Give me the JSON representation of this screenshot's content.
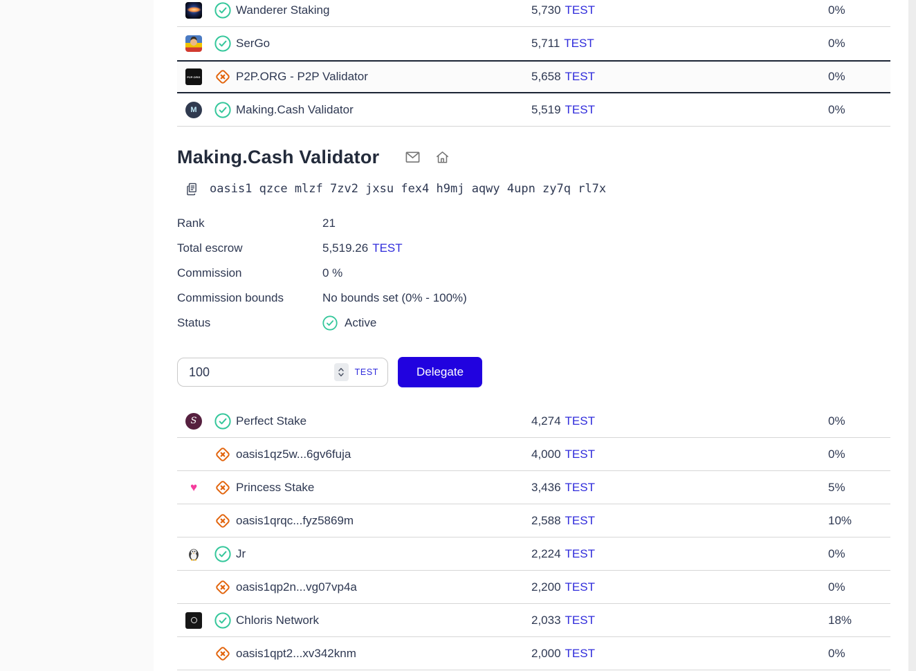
{
  "colors": {
    "accent_blue": "#2102df",
    "link_blue": "#2f2bdb",
    "active_green": "#35c79b",
    "inactive_orange": "#e2650e",
    "text_navy": "#2e3852",
    "selected_row_border": "#1b2434"
  },
  "top_table": {
    "rows": [
      {
        "name": "Wanderer Staking",
        "status": "active",
        "escrow": "5,730",
        "token": "TEST",
        "fee": "0%",
        "avatar": "black-hole",
        "selected": false
      },
      {
        "name": "SerGo",
        "status": "active",
        "escrow": "5,711",
        "token": "TEST",
        "fee": "0%",
        "avatar": "portrait",
        "selected": false
      },
      {
        "name": "P2P.ORG - P2P Validator",
        "status": "inactive",
        "escrow": "5,658",
        "token": "TEST",
        "fee": "0%",
        "avatar": "p2p-logo",
        "selected": true
      },
      {
        "name": "Making.Cash Validator",
        "status": "active",
        "escrow": "5,519",
        "token": "TEST",
        "fee": "0%",
        "avatar": "cube-logo",
        "selected": false
      }
    ]
  },
  "validator_detail": {
    "title": "Making.Cash Validator",
    "address": "oasis1 qzce mlzf 7zv2 jxsu fex4 h9mj aqwy 4upn zy7q rl7x",
    "fields": [
      {
        "label": "Rank",
        "value": "21",
        "type": "plain"
      },
      {
        "label": "Total escrow",
        "value": "5,519.26",
        "token": "TEST",
        "type": "token"
      },
      {
        "label": "Commission",
        "value": "0 %",
        "type": "plain"
      },
      {
        "label": "Commission bounds",
        "value": "No bounds set (0% - 100%)",
        "type": "plain"
      },
      {
        "label": "Status",
        "value": "Active",
        "type": "status"
      }
    ]
  },
  "delegate_form": {
    "amount": "100",
    "currency": "TEST",
    "button_label": "Delegate"
  },
  "bottom_table": {
    "rows": [
      {
        "name": "Perfect Stake",
        "status": "active",
        "escrow": "4,274",
        "token": "TEST",
        "fee": "0%",
        "avatar": "perfect-stake-logo",
        "selected": false
      },
      {
        "name": "oasis1qz5w...6gv6fuja",
        "status": "inactive",
        "escrow": "4,000",
        "token": "TEST",
        "fee": "0%",
        "avatar": null,
        "selected": false
      },
      {
        "name": "Princess Stake",
        "status": "inactive",
        "escrow": "3,436",
        "token": "TEST",
        "fee": "5%",
        "avatar": "heart",
        "selected": false
      },
      {
        "name": "oasis1qrqc...fyz5869m",
        "status": "inactive",
        "escrow": "2,588",
        "token": "TEST",
        "fee": "10%",
        "avatar": null,
        "selected": false
      },
      {
        "name": "Jr",
        "status": "active",
        "escrow": "2,224",
        "token": "TEST",
        "fee": "0%",
        "avatar": "penguin",
        "selected": false
      },
      {
        "name": "oasis1qp2n...vg07vp4a",
        "status": "inactive",
        "escrow": "2,200",
        "token": "TEST",
        "fee": "0%",
        "avatar": null,
        "selected": false
      },
      {
        "name": "Chloris Network",
        "status": "active",
        "escrow": "2,033",
        "token": "TEST",
        "fee": "18%",
        "avatar": "chloris-logo",
        "selected": false
      },
      {
        "name": "oasis1qpt2...xv342knm",
        "status": "inactive",
        "escrow": "2,000",
        "token": "TEST",
        "fee": "0%",
        "avatar": null,
        "selected": false
      }
    ]
  },
  "avatars": {
    "p2p-logo": {
      "text": "P2P.ORG"
    },
    "cube-logo": {
      "letter": "M"
    },
    "perfect-stake-logo": {
      "letter": "S"
    },
    "heart": {
      "glyph": "♥"
    }
  }
}
